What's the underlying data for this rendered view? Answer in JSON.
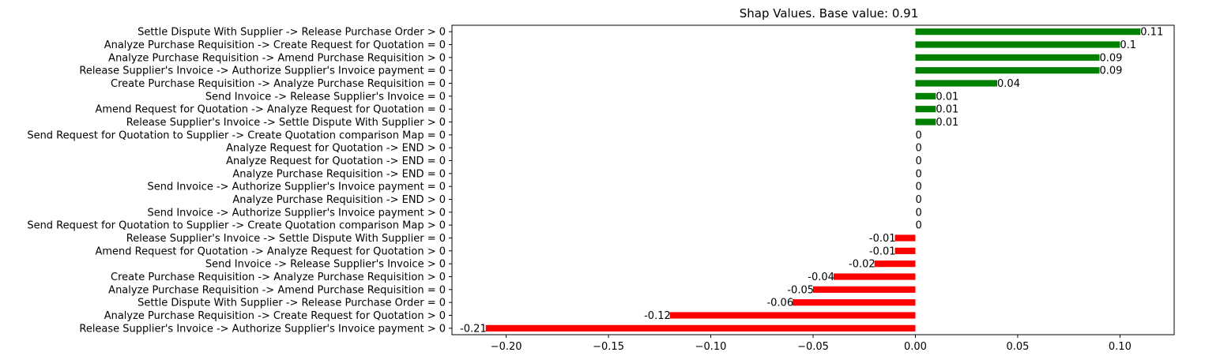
{
  "chart_data": {
    "type": "bar",
    "orientation": "horizontal",
    "title": "Shap Values. Base value: 0.91",
    "xlabel": "",
    "ylabel": "",
    "xlim": [
      -0.2265,
      0.1265
    ],
    "xticks": [
      -0.2,
      -0.15,
      -0.1,
      -0.05,
      0.0,
      0.05,
      0.1
    ],
    "xtick_labels": [
      "−0.20",
      "−0.15",
      "−0.10",
      "−0.05",
      "0.00",
      "0.05",
      "0.10"
    ],
    "grid": false,
    "legend": "none",
    "colors": {
      "positive": "#008000",
      "negative": "#ff0000"
    },
    "categories": [
      "Settle Dispute With Supplier -> Release Purchase Order > 0",
      "Analyze Purchase Requisition -> Create Request for Quotation = 0",
      "Analyze Purchase Requisition -> Amend Purchase Requisition > 0",
      "Release Supplier's Invoice -> Authorize Supplier's Invoice payment = 0",
      "Create Purchase Requisition -> Analyze Purchase Requisition = 0",
      "Send Invoice -> Release Supplier's Invoice = 0",
      "Amend Request for Quotation -> Analyze Request for Quotation = 0",
      "Release Supplier's Invoice -> Settle Dispute With Supplier > 0",
      "Send Request for Quotation to Supplier -> Create Quotation comparison Map = 0",
      "Analyze Request for Quotation -> END > 0",
      "Analyze Request for Quotation -> END = 0",
      "Analyze Purchase Requisition -> END = 0",
      "Send Invoice -> Authorize Supplier's Invoice payment = 0",
      "Analyze Purchase Requisition -> END > 0",
      "Send Invoice -> Authorize Supplier's Invoice payment > 0",
      "Send Request for Quotation to Supplier -> Create Quotation comparison Map > 0",
      "Release Supplier's Invoice -> Settle Dispute With Supplier = 0",
      "Amend Request for Quotation -> Analyze Request for Quotation > 0",
      "Send Invoice -> Release Supplier's Invoice > 0",
      "Create Purchase Requisition -> Analyze Purchase Requisition > 0",
      "Analyze Purchase Requisition -> Amend Purchase Requisition = 0",
      "Settle Dispute With Supplier -> Release Purchase Order = 0",
      "Analyze Purchase Requisition -> Create Request for Quotation > 0",
      "Release Supplier's Invoice -> Authorize Supplier's Invoice payment > 0"
    ],
    "values": [
      0.11,
      0.1,
      0.09,
      0.09,
      0.04,
      0.01,
      0.01,
      0.01,
      0,
      0,
      0,
      0,
      0,
      0,
      0,
      0,
      -0.01,
      -0.01,
      -0.02,
      -0.04,
      -0.05,
      -0.06,
      -0.12,
      -0.21
    ],
    "value_labels": [
      "0.11",
      "0.1",
      "0.09",
      "0.09",
      "0.04",
      "0.01",
      "0.01",
      "0.01",
      "0",
      "0",
      "0",
      "0",
      "0",
      "0",
      "0",
      "0",
      "-0.01",
      "-0.01",
      "-0.02",
      "-0.04",
      "-0.05",
      "-0.06",
      "-0.12",
      "-0.21"
    ]
  }
}
